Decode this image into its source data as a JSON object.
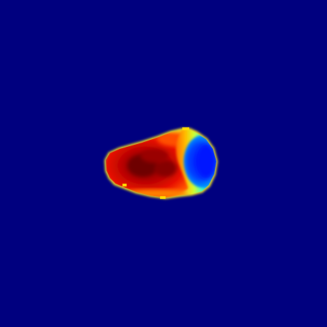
{
  "image": {
    "colormap": "jet",
    "background_color": "#00007f",
    "content": "heatmap-blob"
  }
}
